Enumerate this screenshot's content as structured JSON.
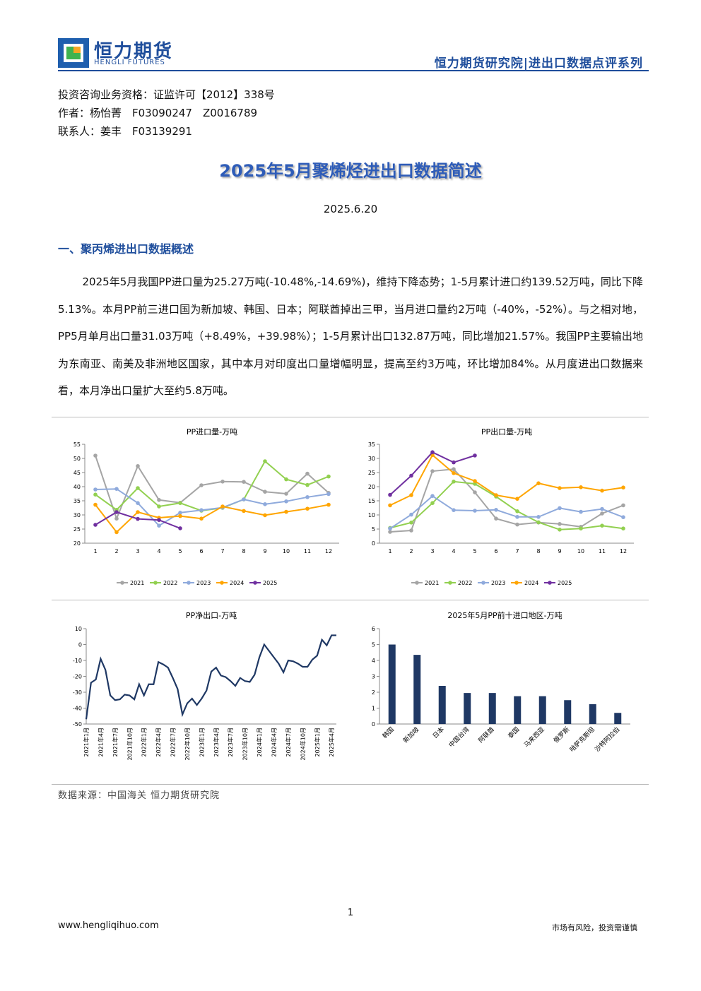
{
  "header": {
    "brand": "恒力期货",
    "brand_en": "HENGLI FUTURES",
    "series_name": "恒力期货研究院|进出口数据点评系列"
  },
  "meta": [
    "投资咨询业务资格：证监许可【2012】338号",
    "作者：杨怡菁　F03090247　Z0016789",
    "联系人：姜丰　F03139291"
  ],
  "title": "2025年5月聚烯烃进出口数据简述",
  "date": "2025.6.20",
  "section": "一、聚丙烯进出口数据概述",
  "paragraph": "2025年5月我国PP进口量为25.27万吨(-10.48%,-14.69%)，维持下降态势；1-5月累计进口约139.52万吨，同比下降5.13%。本月PP前三进口国为新加坡、韩国、日本；阿联酋掉出三甲，当月进口量约2万吨（-40%，-52%）。与之相对地，PP5月单月出口量31.03万吨（+8.49%，+39.98%）；1-5月累计出口132.87万吨，同比增加21.57%。我国PP主要输出地为东南亚、南美及非洲地区国家，其中本月对印度出口量增幅明显，提高至约3万吨，环比增加84%。从月度进出口数据来看，本月净出口量扩大至约5.8万吨。",
  "source": "数据来源：中国海关 恒力期货研究院",
  "page_number": "1",
  "footer": {
    "website": "www.hengliqihuo.com",
    "disclaimer": "市场有风险，投资需谨慎"
  },
  "chart_data": [
    {
      "type": "line",
      "title": "PP进口量-万吨",
      "categories": [
        1,
        2,
        3,
        4,
        5,
        6,
        7,
        8,
        9,
        10,
        11,
        12
      ],
      "ylim": [
        20,
        55
      ],
      "yticks": [
        20,
        25,
        30,
        35,
        40,
        45,
        50,
        55
      ],
      "legend": "bottom",
      "markers": true,
      "series": [
        {
          "name": "2021",
          "color": "#a5a5a5",
          "values": [
            51,
            28.7,
            47.3,
            35.3,
            34.3,
            40.5,
            41.8,
            41.7,
            38.2,
            37.5,
            44.6,
            37.8
          ]
        },
        {
          "name": "2022",
          "color": "#92d050",
          "values": [
            37.2,
            31.8,
            39.5,
            33,
            34.2,
            31.5,
            32.5,
            35.5,
            49,
            42.6,
            40.6,
            43.6
          ]
        },
        {
          "name": "2023",
          "color": "#8faadc",
          "values": [
            39,
            39.2,
            34.2,
            26.2,
            30.8,
            31.7,
            32.6,
            35.5,
            33.8,
            34.8,
            36.3,
            37.4
          ]
        },
        {
          "name": "2024",
          "color": "#ffa500",
          "values": [
            33.6,
            23.9,
            31,
            29,
            29.6,
            28.7,
            33,
            31.4,
            29.9,
            31.1,
            32.2,
            33.6
          ]
        },
        {
          "name": "2025",
          "color": "#7030a0",
          "values": [
            26.5,
            31,
            28.6,
            28.2,
            25.27,
            null,
            null,
            null,
            null,
            null,
            null,
            null
          ]
        }
      ]
    },
    {
      "type": "line",
      "title": "PP出口量-万吨",
      "categories": [
        1,
        2,
        3,
        4,
        5,
        6,
        7,
        8,
        9,
        10,
        11,
        12
      ],
      "ylim": [
        0,
        35
      ],
      "yticks": [
        0,
        5,
        10,
        15,
        20,
        25,
        30,
        35
      ],
      "legend": "bottom",
      "markers": true,
      "series": [
        {
          "name": "2021",
          "color": "#a5a5a5",
          "values": [
            4,
            4.5,
            25.5,
            26.2,
            18,
            8.7,
            6.6,
            7.3,
            6.8,
            5.8,
            10.5,
            13.4
          ]
        },
        {
          "name": "2022",
          "color": "#92d050",
          "values": [
            5.4,
            7.3,
            14.2,
            21.8,
            21,
            16.5,
            11.3,
            7.4,
            4.8,
            5.2,
            6.2,
            5.2
          ]
        },
        {
          "name": "2023",
          "color": "#8faadc",
          "values": [
            5.2,
            10.1,
            16.7,
            11.7,
            11.5,
            11.8,
            9.3,
            9.3,
            12.4,
            11.1,
            12.1,
            9.2
          ]
        },
        {
          "name": "2024",
          "color": "#ffa500",
          "values": [
            13.4,
            17,
            31.2,
            24.8,
            22,
            17,
            15.7,
            21.2,
            19.5,
            19.8,
            18.6,
            19.7
          ]
        },
        {
          "name": "2025",
          "color": "#7030a0",
          "values": [
            17.1,
            23.9,
            32.2,
            28.6,
            31.03,
            null,
            null,
            null,
            null,
            null,
            null,
            null
          ]
        }
      ]
    },
    {
      "type": "line",
      "title": "PP净出口-万吨",
      "markers": false,
      "categories": [
        "2021年1月",
        null,
        null,
        "2021年4月",
        null,
        null,
        "2021年7月",
        null,
        null,
        "2021年10月",
        null,
        null,
        "2022年1月",
        null,
        null,
        "2022年4月",
        null,
        null,
        "2022年7月",
        null,
        null,
        "2022年10月",
        null,
        null,
        "2023年1月",
        null,
        null,
        "2023年4月",
        null,
        null,
        "2023年7月",
        null,
        null,
        "2023年10月",
        null,
        null,
        "2024年1月",
        null,
        null,
        "2024年4月",
        null,
        null,
        "2024年7月",
        null,
        null,
        "2024年10月",
        null,
        null,
        "2025年1月",
        null,
        null,
        "2025年4月",
        null
      ],
      "ylim": [
        -50,
        10
      ],
      "yticks": [
        -50,
        -40,
        -30,
        -20,
        -10,
        0,
        10
      ],
      "series": [
        {
          "color": "#1f3864",
          "values": [
            -47,
            -24,
            -22,
            -9,
            -16,
            -32,
            -35,
            -34.5,
            -31.5,
            -32,
            -34.5,
            -25,
            -32,
            -25,
            -25,
            -11,
            -12.5,
            -14.5,
            -21,
            -28,
            -44,
            -37,
            -34,
            -38,
            -34,
            -29,
            -17,
            -14.5,
            -19.5,
            -20.5,
            -23,
            -26,
            -21,
            -23,
            -23.5,
            -19,
            -8,
            0,
            -4,
            -8,
            -12,
            -17.5,
            -10,
            -10.5,
            -12,
            -14,
            -14,
            -9.5,
            -7,
            3,
            -0.5,
            5.8,
            5.8
          ]
        }
      ]
    },
    {
      "type": "bar",
      "title": "2025年5月PP前十进口地区-万吨",
      "categories": [
        "韩国",
        "新加坡",
        "日本",
        "中国台湾",
        "阿联酋",
        "泰国",
        "马来西亚",
        "俄罗斯",
        "哈萨克斯坦",
        "沙特阿拉伯"
      ],
      "values": [
        5,
        4.35,
        2.4,
        1.95,
        1.95,
        1.75,
        1.75,
        1.5,
        1.25,
        0.7
      ],
      "color": "#1f3864",
      "ylim": [
        0,
        6
      ],
      "yticks": [
        0,
        1,
        2,
        3,
        4,
        5,
        6
      ]
    }
  ]
}
